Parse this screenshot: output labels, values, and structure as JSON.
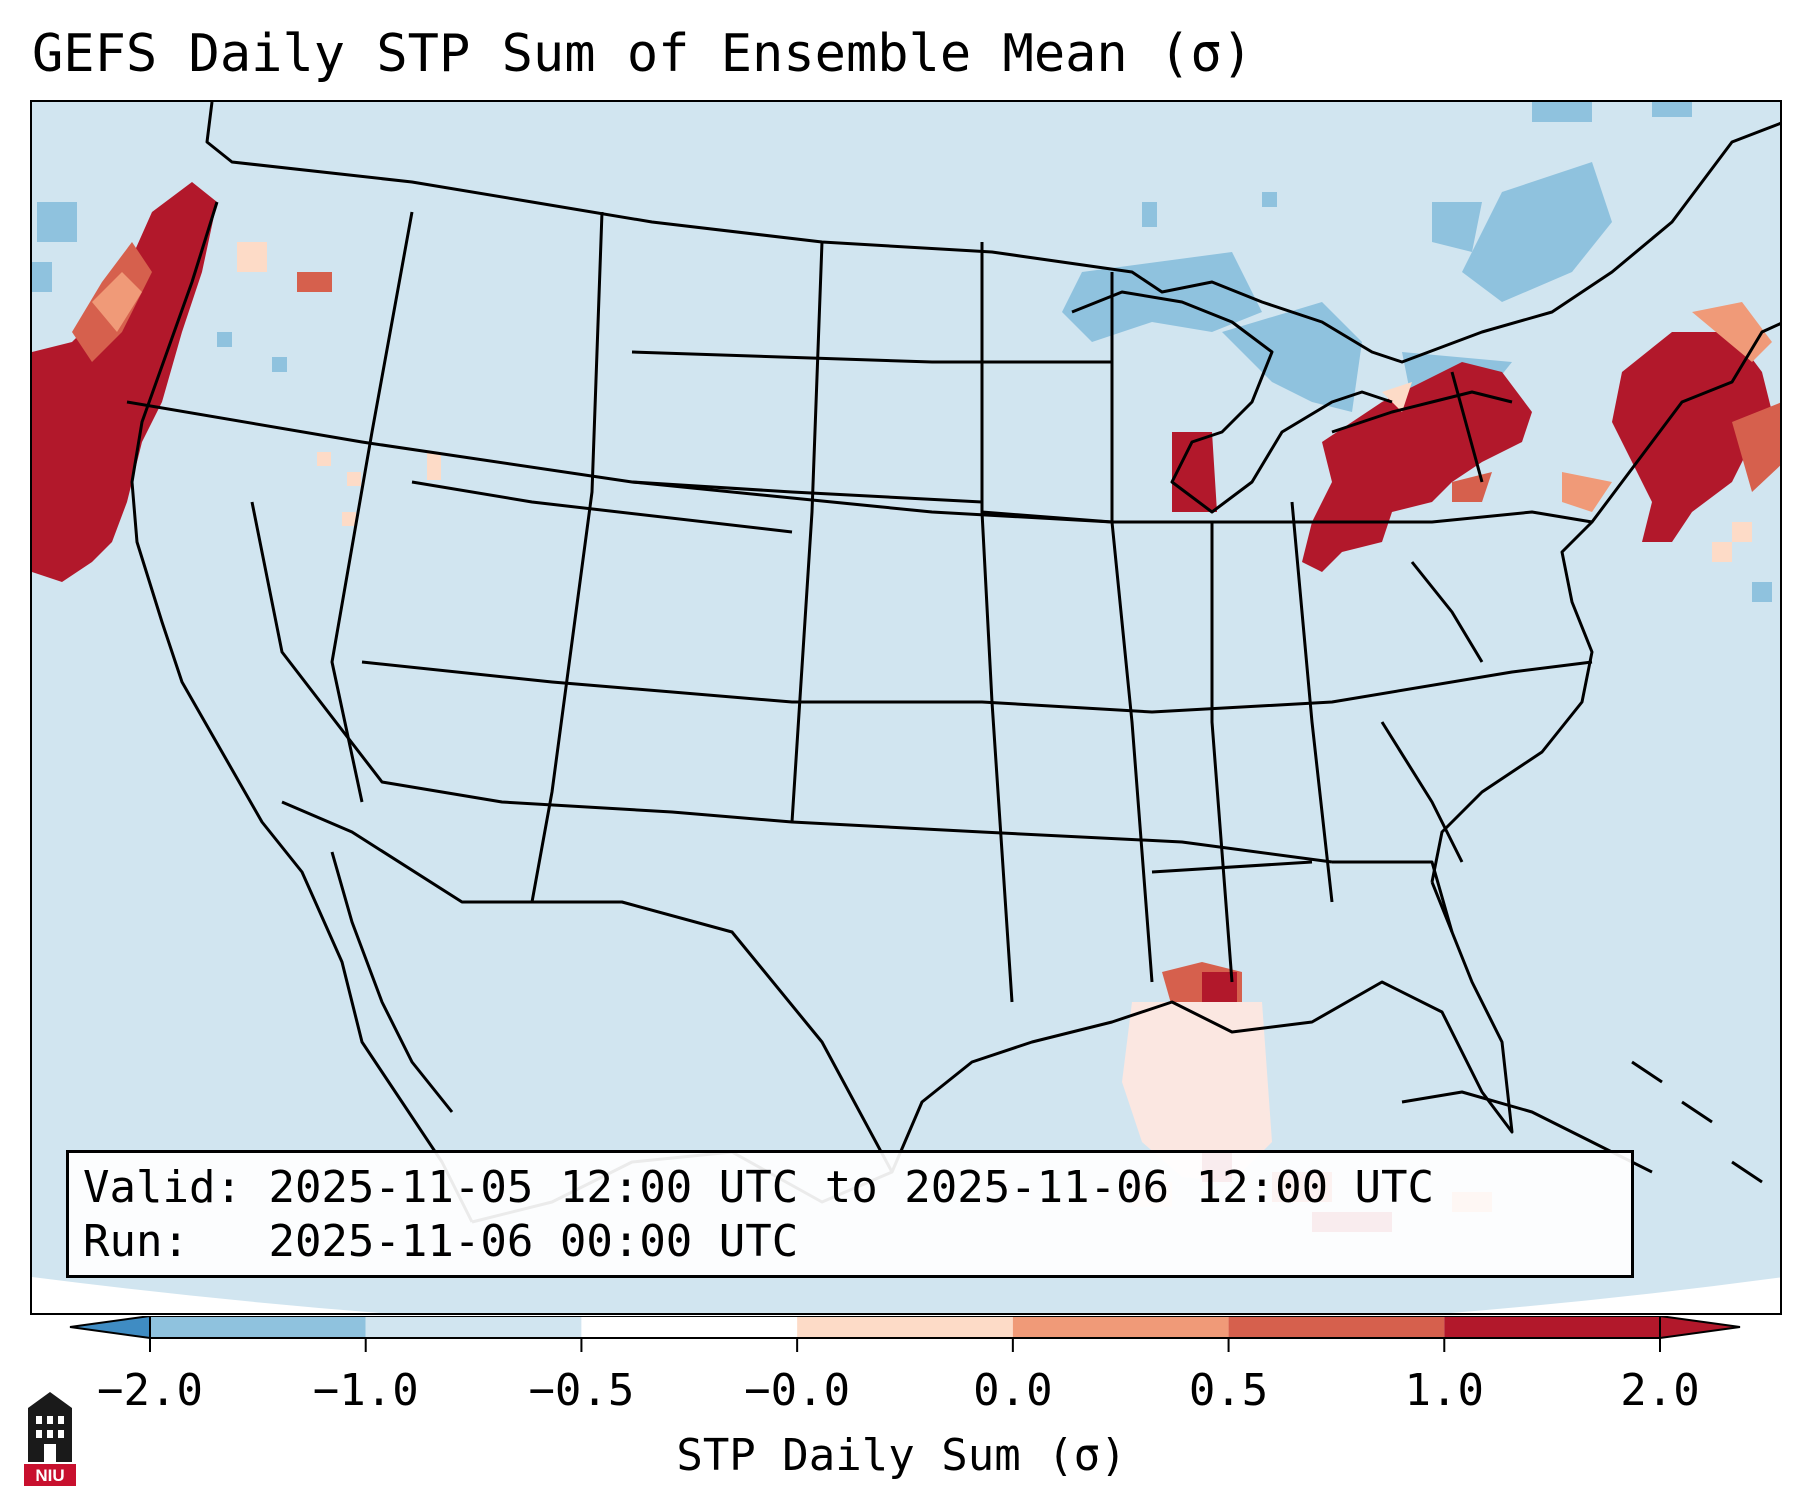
{
  "title": "GEFS Daily STP Sum of Ensemble Mean (σ)",
  "info": {
    "valid_label": "Valid:",
    "valid_value": "2025-11-05 12:00 UTC to 2025-11-06 12:00 UTC",
    "run_label": "Run:",
    "run_value": "2025-11-06 00:00 UTC"
  },
  "colorbar": {
    "label": "STP Daily Sum (σ)",
    "ticks": [
      "−2.0",
      "−1.0",
      "−0.5",
      "−0.0",
      "0.0",
      "0.5",
      "1.0",
      "2.0"
    ],
    "bin_colors": [
      "#3f8cc3",
      "#8fc2de",
      "#d1e5f0",
      "#ffffff",
      "#fddbc7",
      "#f09a78",
      "#d6604d",
      "#b2182b"
    ],
    "extend": "both"
  },
  "map": {
    "background_color": "#d1e5f0",
    "region": "Contiguous United States"
  },
  "logo": {
    "text": "NIU",
    "icon": "niu-seal-icon"
  }
}
